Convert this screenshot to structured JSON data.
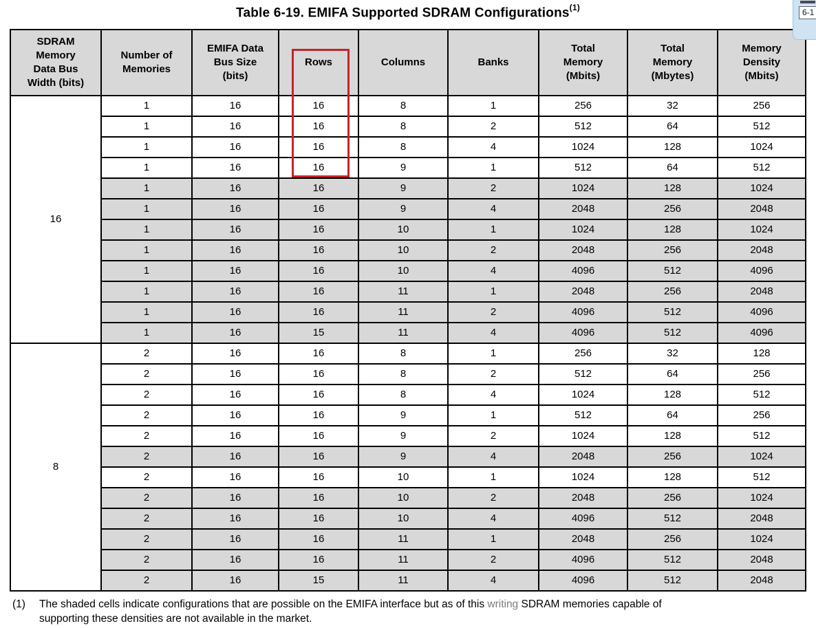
{
  "title": {
    "text": "Table 6-19. EMIFA Supported SDRAM Configurations",
    "footnote_ref": "(1)"
  },
  "corner_tooltip": {
    "label": "6-1"
  },
  "table": {
    "headers": [
      "SDRAM\nMemory\nData Bus\nWidth (bits)",
      "Number of\nMemories",
      "EMIFA Data\nBus Size\n(bits)",
      "Rows",
      "Columns",
      "Banks",
      "Total\nMemory\n(Mbits)",
      "Total\nMemory\n(Mbytes)",
      "Memory\nDensity\n(Mbits)"
    ],
    "annotation": {
      "description": "red rectangle highlighting Rows header and first four Rows cells",
      "color": "#c2252b"
    },
    "groups": [
      {
        "bus_width": "16",
        "rows": [
          {
            "cells": [
              "1",
              "16",
              "16",
              "8",
              "1",
              "256",
              "32",
              "256"
            ],
            "shaded": false
          },
          {
            "cells": [
              "1",
              "16",
              "16",
              "8",
              "2",
              "512",
              "64",
              "512"
            ],
            "shaded": false
          },
          {
            "cells": [
              "1",
              "16",
              "16",
              "8",
              "4",
              "1024",
              "128",
              "1024"
            ],
            "shaded": false
          },
          {
            "cells": [
              "1",
              "16",
              "16",
              "9",
              "1",
              "512",
              "64",
              "512"
            ],
            "shaded": false
          },
          {
            "cells": [
              "1",
              "16",
              "16",
              "9",
              "2",
              "1024",
              "128",
              "1024"
            ],
            "shaded": true
          },
          {
            "cells": [
              "1",
              "16",
              "16",
              "9",
              "4",
              "2048",
              "256",
              "2048"
            ],
            "shaded": true
          },
          {
            "cells": [
              "1",
              "16",
              "16",
              "10",
              "1",
              "1024",
              "128",
              "1024"
            ],
            "shaded": true
          },
          {
            "cells": [
              "1",
              "16",
              "16",
              "10",
              "2",
              "2048",
              "256",
              "2048"
            ],
            "shaded": true
          },
          {
            "cells": [
              "1",
              "16",
              "16",
              "10",
              "4",
              "4096",
              "512",
              "4096"
            ],
            "shaded": true
          },
          {
            "cells": [
              "1",
              "16",
              "16",
              "11",
              "1",
              "2048",
              "256",
              "2048"
            ],
            "shaded": true
          },
          {
            "cells": [
              "1",
              "16",
              "16",
              "11",
              "2",
              "4096",
              "512",
              "4096"
            ],
            "shaded": true
          },
          {
            "cells": [
              "1",
              "16",
              "15",
              "11",
              "4",
              "4096",
              "512",
              "4096"
            ],
            "shaded": true
          }
        ]
      },
      {
        "bus_width": "8",
        "rows": [
          {
            "cells": [
              "2",
              "16",
              "16",
              "8",
              "1",
              "256",
              "32",
              "128"
            ],
            "shaded": false
          },
          {
            "cells": [
              "2",
              "16",
              "16",
              "8",
              "2",
              "512",
              "64",
              "256"
            ],
            "shaded": false
          },
          {
            "cells": [
              "2",
              "16",
              "16",
              "8",
              "4",
              "1024",
              "128",
              "512"
            ],
            "shaded": false
          },
          {
            "cells": [
              "2",
              "16",
              "16",
              "9",
              "1",
              "512",
              "64",
              "256"
            ],
            "shaded": false
          },
          {
            "cells": [
              "2",
              "16",
              "16",
              "9",
              "2",
              "1024",
              "128",
              "512"
            ],
            "shaded": false
          },
          {
            "cells": [
              "2",
              "16",
              "16",
              "9",
              "4",
              "2048",
              "256",
              "1024"
            ],
            "shaded": true
          },
          {
            "cells": [
              "2",
              "16",
              "16",
              "10",
              "1",
              "1024",
              "128",
              "512"
            ],
            "shaded": false
          },
          {
            "cells": [
              "2",
              "16",
              "16",
              "10",
              "2",
              "2048",
              "256",
              "1024"
            ],
            "shaded": true
          },
          {
            "cells": [
              "2",
              "16",
              "16",
              "10",
              "4",
              "4096",
              "512",
              "2048"
            ],
            "shaded": true
          },
          {
            "cells": [
              "2",
              "16",
              "16",
              "11",
              "1",
              "2048",
              "256",
              "1024"
            ],
            "shaded": true
          },
          {
            "cells": [
              "2",
              "16",
              "16",
              "11",
              "2",
              "4096",
              "512",
              "2048"
            ],
            "shaded": true
          },
          {
            "cells": [
              "2",
              "16",
              "15",
              "11",
              "4",
              "4096",
              "512",
              "2048"
            ],
            "shaded": true
          }
        ]
      }
    ]
  },
  "footnote": {
    "marker": "(1)",
    "line1_pre": "The shaded cells indicate configurations that are possible on the EMIFA interface but as of this ",
    "line1_word": "writing",
    "line1_post": " SDRAM memories capable of",
    "line2": "supporting these densities are not available in the market."
  },
  "colors": {
    "shaded_cell": "#d8d8d8",
    "header_bg": "#d8d8d8",
    "annotation_red": "#c2252b",
    "tooltip_bg": "#cfe3f3"
  }
}
